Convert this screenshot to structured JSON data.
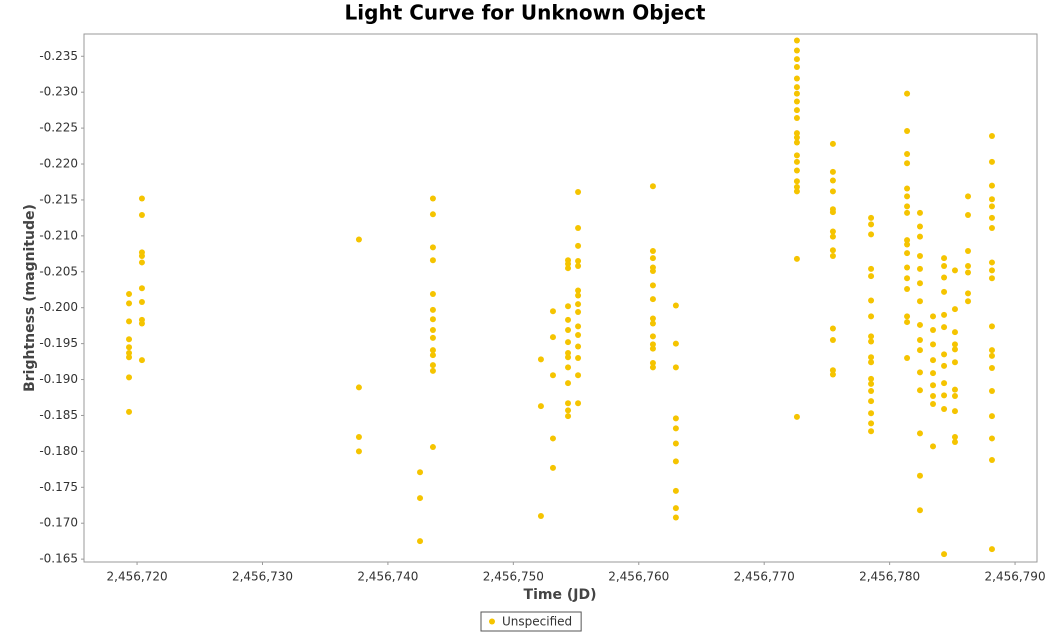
{
  "chart_data": {
    "type": "scatter",
    "title": "Light Curve for Unknown Object",
    "x_label": "Time (JD)",
    "y_label": "Brightness (magnitude)",
    "xlim": [
      2456715.77,
      2456791.75
    ],
    "ylim": [
      -0.1646,
      -0.2381
    ],
    "xticks": [
      {
        "value": 2456720,
        "label": "2,456,720"
      },
      {
        "value": 2456730,
        "label": "2,456,730"
      },
      {
        "value": 2456740,
        "label": "2,456,740"
      },
      {
        "value": 2456750,
        "label": "2,456,750"
      },
      {
        "value": 2456760,
        "label": "2,456,760"
      },
      {
        "value": 2456770,
        "label": "2,456,770"
      },
      {
        "value": 2456780,
        "label": "2,456,780"
      },
      {
        "value": 2456790,
        "label": "2,456,790"
      }
    ],
    "yticks": [
      -0.235,
      {
        "value": -0.23,
        "label": "-0.230"
      },
      -0.225,
      {
        "value": -0.22,
        "label": "-0.220"
      },
      -0.215,
      {
        "value": -0.21,
        "label": "-0.210"
      },
      -0.205,
      {
        "value": -0.2,
        "label": "-0.200"
      },
      -0.195,
      {
        "value": -0.19,
        "label": "-0.190"
      },
      -0.185,
      {
        "value": -0.18,
        "label": "-0.180"
      },
      -0.175,
      {
        "value": -0.17,
        "label": "-0.170"
      },
      -0.165
    ],
    "grid": false,
    "legend": "bottom",
    "series": [
      {
        "name": "Unspecified",
        "color": "#f5c400",
        "x": [
          2456719.36,
          2456719.36,
          2456719.36,
          2456719.36,
          2456719.36,
          2456719.36,
          2456719.36,
          2456719.36,
          2456719.36,
          2456720.39,
          2456720.39,
          2456720.39,
          2456720.39,
          2456720.39,
          2456720.39,
          2456720.39,
          2456720.39,
          2456720.39,
          2456720.39,
          2456737.69,
          2456737.69,
          2456737.69,
          2456737.69,
          2456742.56,
          2456742.56,
          2456742.56,
          2456743.59,
          2456743.59,
          2456743.59,
          2456743.59,
          2456743.59,
          2456743.59,
          2456743.59,
          2456743.59,
          2456743.59,
          2456743.59,
          2456743.59,
          2456743.59,
          2456743.59,
          2456743.59,
          2456752.2,
          2456752.2,
          2456752.2,
          2456753.16,
          2456753.16,
          2456753.16,
          2456753.16,
          2456753.16,
          2456754.36,
          2456754.36,
          2456754.36,
          2456754.36,
          2456754.36,
          2456754.36,
          2456754.36,
          2456754.36,
          2456754.36,
          2456754.36,
          2456754.36,
          2456754.36,
          2456754.36,
          2456754.36,
          2456755.16,
          2456755.16,
          2456755.16,
          2456755.16,
          2456755.16,
          2456755.16,
          2456755.16,
          2456755.16,
          2456755.16,
          2456755.16,
          2456755.16,
          2456755.16,
          2456755.16,
          2456755.16,
          2456755.16,
          2456761.13,
          2456761.13,
          2456761.13,
          2456761.13,
          2456761.13,
          2456761.13,
          2456761.13,
          2456761.13,
          2456761.13,
          2456761.13,
          2456761.13,
          2456761.13,
          2456761.13,
          2456761.13,
          2456762.96,
          2456762.96,
          2456762.96,
          2456762.96,
          2456762.96,
          2456762.96,
          2456762.96,
          2456762.96,
          2456762.96,
          2456762.96,
          2456772.61,
          2456772.61,
          2456772.61,
          2456772.61,
          2456772.61,
          2456772.61,
          2456772.61,
          2456772.61,
          2456772.61,
          2456772.61,
          2456772.61,
          2456772.61,
          2456772.61,
          2456772.61,
          2456772.61,
          2456772.61,
          2456772.61,
          2456772.61,
          2456772.61,
          2456772.61,
          2456772.61,
          2456775.48,
          2456775.48,
          2456775.48,
          2456775.48,
          2456775.48,
          2456775.48,
          2456775.48,
          2456775.48,
          2456775.48,
          2456775.48,
          2456775.48,
          2456775.48,
          2456775.48,
          2456775.48,
          2456778.52,
          2456778.52,
          2456778.52,
          2456778.52,
          2456778.52,
          2456778.52,
          2456778.52,
          2456778.52,
          2456778.52,
          2456778.52,
          2456778.52,
          2456778.52,
          2456778.52,
          2456778.52,
          2456778.52,
          2456778.52,
          2456778.52,
          2456778.52,
          2456781.39,
          2456781.39,
          2456781.39,
          2456781.39,
          2456781.39,
          2456781.39,
          2456781.39,
          2456781.39,
          2456781.39,
          2456781.39,
          2456781.39,
          2456781.39,
          2456781.39,
          2456781.39,
          2456781.39,
          2456781.39,
          2456781.39,
          2456782.42,
          2456782.42,
          2456782.42,
          2456782.42,
          2456782.42,
          2456782.42,
          2456782.42,
          2456782.42,
          2456782.42,
          2456782.42,
          2456782.42,
          2456782.42,
          2456782.42,
          2456782.42,
          2456782.42,
          2456783.46,
          2456783.46,
          2456783.46,
          2456783.46,
          2456783.46,
          2456783.46,
          2456783.46,
          2456783.46,
          2456783.46,
          2456784.34,
          2456784.34,
          2456784.34,
          2456784.34,
          2456784.34,
          2456784.34,
          2456784.34,
          2456784.34,
          2456784.34,
          2456784.34,
          2456784.34,
          2456784.34,
          2456785.21,
          2456785.21,
          2456785.21,
          2456785.21,
          2456785.21,
          2456785.21,
          2456785.21,
          2456785.21,
          2456785.21,
          2456785.21,
          2456785.21,
          2456786.25,
          2456786.25,
          2456786.25,
          2456786.25,
          2456786.25,
          2456786.25,
          2456786.25,
          2456788.16,
          2456788.16,
          2456788.16,
          2456788.16,
          2456788.16,
          2456788.16,
          2456788.16,
          2456788.16,
          2456788.16,
          2456788.16,
          2456788.16,
          2456788.16,
          2456788.16,
          2456788.16,
          2456788.16,
          2456788.16,
          2456788.16,
          2456788.16,
          2456788.16
        ],
        "values": [
          -0.2019,
          -0.2006,
          -0.1981,
          -0.1956,
          -0.1945,
          -0.1937,
          -0.1931,
          -0.1903,
          -0.1855,
          -0.2152,
          -0.2129,
          -0.2077,
          -0.2072,
          -0.2063,
          -0.2027,
          -0.2008,
          -0.1983,
          -0.1978,
          -0.1927,
          -0.2095,
          -0.1889,
          -0.182,
          -0.18,
          -0.1771,
          -0.1735,
          -0.1675,
          -0.2152,
          -0.213,
          -0.2084,
          -0.2066,
          -0.2019,
          -0.1997,
          -0.1984,
          -0.1969,
          -0.1958,
          -0.1941,
          -0.1934,
          -0.192,
          -0.1912,
          -0.1806,
          -0.1928,
          -0.1863,
          -0.171,
          -0.1995,
          -0.1959,
          -0.1906,
          -0.1818,
          -0.1777,
          -0.2002,
          -0.1969,
          -0.1952,
          -0.1937,
          -0.1931,
          -0.1917,
          -0.1895,
          -0.1867,
          -0.1857,
          -0.1849,
          -0.2066,
          -0.2061,
          -0.2055,
          -0.1983,
          -0.2161,
          -0.2111,
          -0.2086,
          -0.2065,
          -0.2058,
          -0.2024,
          -0.2017,
          -0.2005,
          -0.1994,
          -0.1974,
          -0.1962,
          -0.1946,
          -0.193,
          -0.1906,
          -0.1867,
          -0.2169,
          -0.2079,
          -0.2069,
          -0.2056,
          -0.2051,
          -0.2031,
          -0.2012,
          -0.1985,
          -0.1978,
          -0.196,
          -0.1949,
          -0.1943,
          -0.1923,
          -0.1917,
          -0.2003,
          -0.195,
          -0.1917,
          -0.1846,
          -0.1832,
          -0.1811,
          -0.1786,
          -0.1745,
          -0.1721,
          -0.1708,
          -0.2372,
          -0.2358,
          -0.2346,
          -0.2335,
          -0.2319,
          -0.2307,
          -0.2298,
          -0.2287,
          -0.2275,
          -0.2264,
          -0.2243,
          -0.2237,
          -0.223,
          -0.2212,
          -0.2203,
          -0.2191,
          -0.2176,
          -0.2168,
          -0.2162,
          -0.2068,
          -0.1848,
          -0.2228,
          -0.2189,
          -0.2177,
          -0.2162,
          -0.2137,
          -0.2133,
          -0.2106,
          -0.2099,
          -0.208,
          -0.2072,
          -0.1971,
          -0.1955,
          -0.1913,
          -0.1907,
          -0.2125,
          -0.2116,
          -0.2102,
          -0.2054,
          -0.2044,
          -0.201,
          -0.1988,
          -0.196,
          -0.1953,
          -0.1931,
          -0.1924,
          -0.1901,
          -0.1894,
          -0.1884,
          -0.187,
          -0.1853,
          -0.1839,
          -0.1828,
          -0.2298,
          -0.2246,
          -0.2214,
          -0.2201,
          -0.2166,
          -0.2155,
          -0.2141,
          -0.2132,
          -0.2094,
          -0.2088,
          -0.2076,
          -0.2056,
          -0.2041,
          -0.2026,
          -0.1988,
          -0.198,
          -0.193,
          -0.2132,
          -0.2113,
          -0.2099,
          -0.2072,
          -0.2054,
          -0.2034,
          -0.2009,
          -0.1976,
          -0.1955,
          -0.1941,
          -0.191,
          -0.1885,
          -0.1825,
          -0.1766,
          -0.1718,
          -0.1988,
          -0.1969,
          -0.1949,
          -0.1927,
          -0.1909,
          -0.1892,
          -0.1877,
          -0.1866,
          -0.1807,
          -0.2069,
          -0.2058,
          -0.2042,
          -0.2022,
          -0.199,
          -0.1973,
          -0.1935,
          -0.1919,
          -0.1895,
          -0.1878,
          -0.1859,
          -0.1657,
          -0.2052,
          -0.1998,
          -0.1966,
          -0.1949,
          -0.1942,
          -0.1924,
          -0.1886,
          -0.1877,
          -0.1856,
          -0.182,
          -0.1813,
          -0.2155,
          -0.2129,
          -0.2079,
          -0.2058,
          -0.2049,
          -0.202,
          -0.2009,
          -0.2239,
          -0.2203,
          -0.217,
          -0.2151,
          -0.2141,
          -0.2125,
          -0.2111,
          -0.2063,
          -0.2052,
          -0.2041,
          -0.1974,
          -0.1941,
          -0.1933,
          -0.1916,
          -0.1884,
          -0.1849,
          -0.1818,
          -0.1788,
          -0.1664
        ]
      }
    ]
  }
}
